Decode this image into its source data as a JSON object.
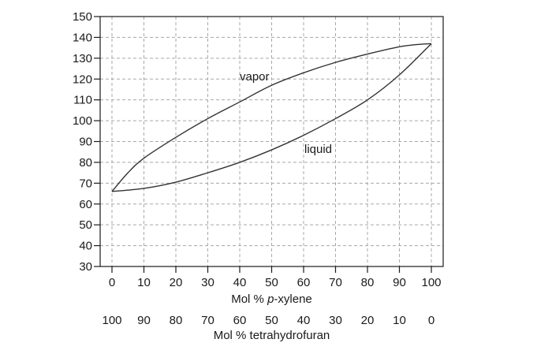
{
  "chart_data": {
    "type": "line",
    "xlabel_parts": [
      "Mol % ",
      "p",
      "-xylene"
    ],
    "x2label": "Mol % tetrahydrofuran",
    "xlim": [
      0,
      100
    ],
    "ylim": [
      30,
      150
    ],
    "x_ticks": [
      0,
      10,
      20,
      30,
      40,
      50,
      60,
      70,
      80,
      90,
      100
    ],
    "x2_ticks": [
      100,
      90,
      80,
      70,
      60,
      50,
      40,
      30,
      20,
      10,
      0
    ],
    "y_ticks": [
      30,
      40,
      50,
      60,
      70,
      80,
      90,
      100,
      110,
      120,
      130,
      140,
      150
    ],
    "grid": true,
    "series": [
      {
        "name": "vapor",
        "x": [
          0,
          5,
          10,
          20,
          30,
          40,
          50,
          60,
          70,
          80,
          90,
          95,
          100
        ],
        "y": [
          66,
          75,
          82,
          92,
          101,
          109,
          117,
          123,
          128,
          132,
          135.5,
          136.5,
          137
        ]
      },
      {
        "name": "liquid",
        "x": [
          0,
          10,
          20,
          30,
          40,
          50,
          60,
          70,
          80,
          90,
          100
        ],
        "y": [
          66,
          67.5,
          70.5,
          75,
          80,
          86,
          93,
          101,
          110,
          122,
          137
        ]
      }
    ]
  }
}
